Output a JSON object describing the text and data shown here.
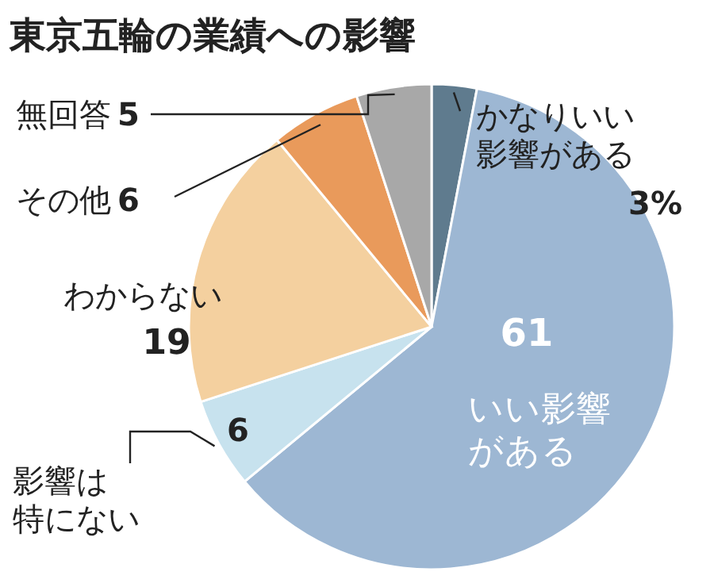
{
  "chart_data": {
    "type": "pie",
    "title": "東京五輪の業績への影響",
    "categories": [
      "かなりいい影響がある",
      "いい影響がある",
      "影響は特にない",
      "わからない",
      "その他",
      "無回答"
    ],
    "values": [
      3,
      61,
      6,
      19,
      6,
      5
    ],
    "value_labels": [
      "3%",
      "61",
      "6",
      "19",
      "6",
      "5"
    ],
    "colors": [
      "#5f7b8e",
      "#9db7d3",
      "#c7e2ee",
      "#f4d09f",
      "#e99a5b",
      "#a8a8a8"
    ]
  }
}
